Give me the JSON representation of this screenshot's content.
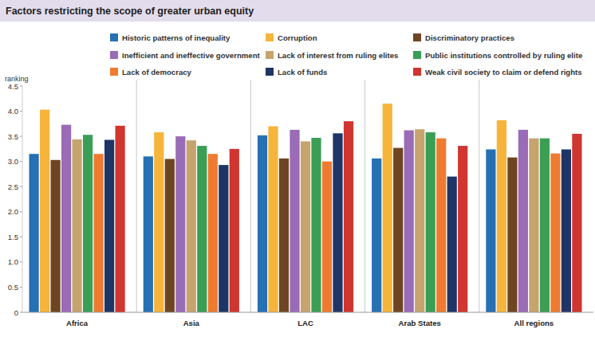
{
  "chart_data": {
    "type": "bar",
    "title": "Factors restricting the scope of greater urban equity",
    "y_label": "ranking",
    "categories": [
      "Africa",
      "Asia",
      "LAC",
      "Arab States",
      "All regions"
    ],
    "series": [
      {
        "name": "Historic patterns of inequality",
        "color": "#2670b4",
        "values": [
          3.15,
          3.1,
          3.52,
          3.06,
          3.24
        ]
      },
      {
        "name": "Corruption",
        "color": "#f6b43a",
        "values": [
          4.03,
          3.58,
          3.7,
          4.15,
          3.82
        ]
      },
      {
        "name": "Discriminatory practices",
        "color": "#6e4523",
        "values": [
          3.03,
          3.05,
          3.06,
          3.27,
          3.08
        ]
      },
      {
        "name": "Inefficient and ineffective government",
        "color": "#9a6bb6",
        "values": [
          3.73,
          3.5,
          3.63,
          3.62,
          3.63
        ]
      },
      {
        "name": "Lack of interest from ruling elites",
        "color": "#c6a46e",
        "values": [
          3.44,
          3.42,
          3.4,
          3.64,
          3.46
        ]
      },
      {
        "name": "Public institutions controlled by ruling elite",
        "color": "#3a9e55",
        "values": [
          3.53,
          3.31,
          3.47,
          3.58,
          3.46
        ]
      },
      {
        "name": "Lack of democracy",
        "color": "#ee7b30",
        "values": [
          3.15,
          3.15,
          3.0,
          3.46,
          3.16
        ]
      },
      {
        "name": "Lack of funds",
        "color": "#1e3566",
        "values": [
          3.43,
          2.93,
          3.56,
          2.7,
          3.24
        ]
      },
      {
        "name": "Weak civil society to claim or defend rights",
        "color": "#d0352f",
        "values": [
          3.71,
          3.25,
          3.8,
          3.31,
          3.55
        ]
      }
    ],
    "ylim": [
      0,
      4.5
    ],
    "yticks": [
      0,
      0.5,
      {
        "value": 1,
        "label": "1.0"
      },
      1.5,
      {
        "value": 2,
        "label": "2.0"
      },
      2.5,
      {
        "value": 3,
        "label": "3.0"
      },
      3.5,
      {
        "value": 4,
        "label": "4.0"
      },
      4.5
    ],
    "grid": false,
    "legend": "top"
  }
}
